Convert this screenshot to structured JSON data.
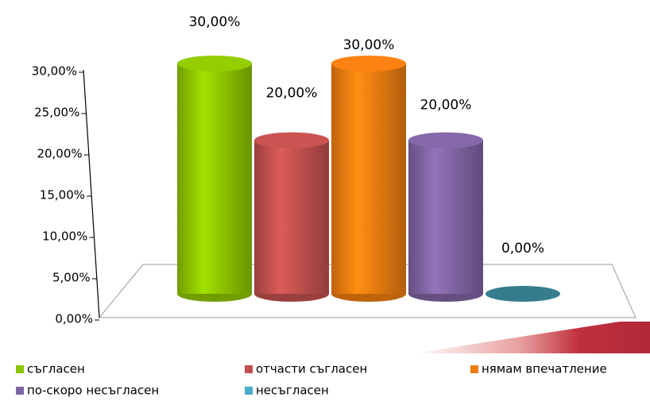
{
  "chart_data": {
    "type": "bar",
    "series": [
      {
        "name": "съгласен",
        "color": "#8dc400",
        "values": [
          30
        ],
        "value_labels": [
          "30,00%"
        ]
      },
      {
        "name": "отчасти съгласен",
        "color": "#c0504d",
        "values": [
          20
        ],
        "value_labels": [
          "20,00%"
        ]
      },
      {
        "name": "нямам впечатление",
        "color": "#f07c10",
        "values": [
          30
        ],
        "value_labels": [
          "30,00%"
        ]
      },
      {
        "name": "по-скоро несъгласен",
        "color": "#8064a2",
        "values": [
          20
        ],
        "value_labels": [
          "20,00%"
        ]
      },
      {
        "name": "несъгласен",
        "color": "#4bacc6",
        "values": [
          0
        ],
        "value_labels": [
          "0,00%"
        ]
      }
    ],
    "ylim": [
      0,
      30
    ],
    "yticks": [
      {
        "value": 0,
        "label": "0,00%"
      },
      {
        "value": 5,
        "label": "5,00%"
      },
      {
        "value": 10,
        "label": "10,00%"
      },
      {
        "value": 15,
        "label": "15,00%"
      },
      {
        "value": 20,
        "label": "20,00%"
      },
      {
        "value": 25,
        "label": "25,00%"
      },
      {
        "value": 30,
        "label": "30,00%"
      }
    ]
  }
}
